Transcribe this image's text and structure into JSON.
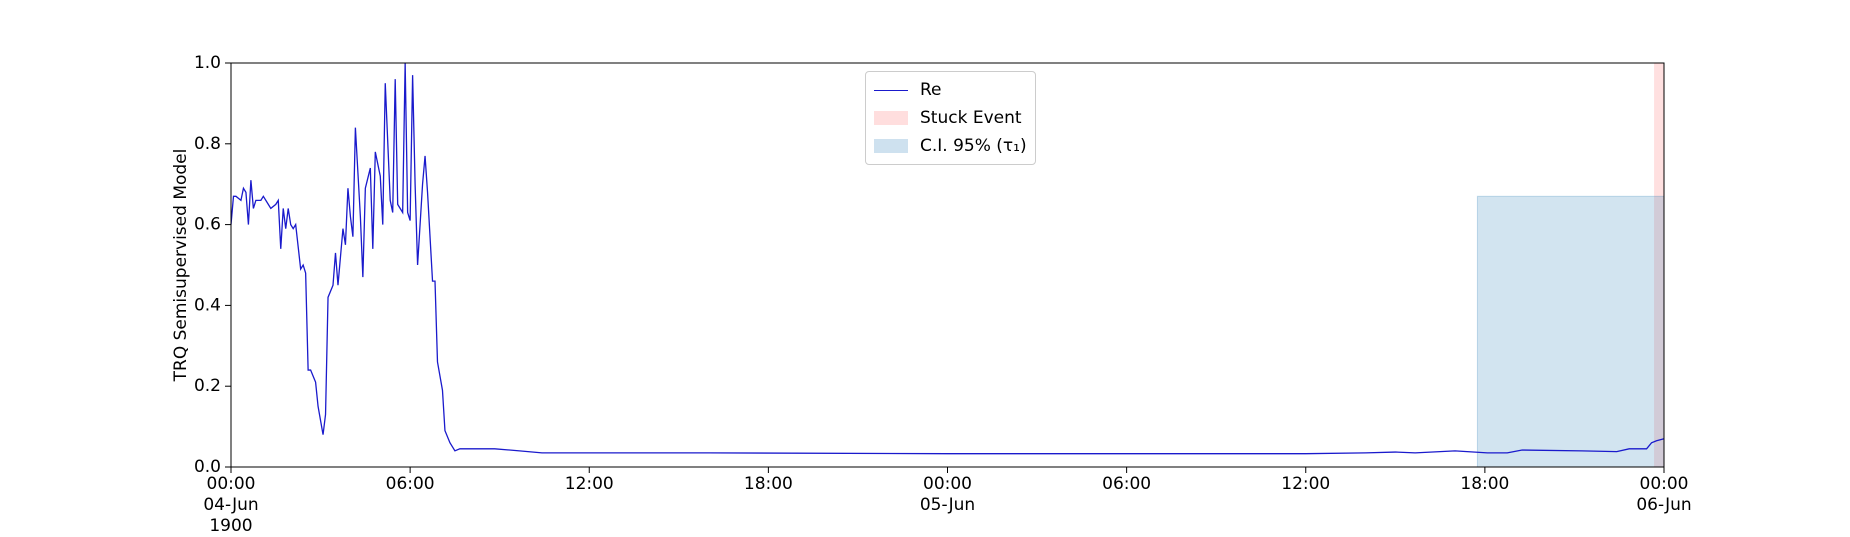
{
  "chart_data": {
    "type": "line",
    "ylabel": "TRQ Semisupervised Model",
    "x": [
      "1900-06-04 00:00",
      "1900-06-04 00:05",
      "1900-06-04 00:10",
      "1900-06-04 00:20",
      "1900-06-04 00:25",
      "1900-06-04 00:30",
      "1900-06-04 00:35",
      "1900-06-04 00:40",
      "1900-06-04 00:45",
      "1900-06-04 00:50",
      "1900-06-04 01:00",
      "1900-06-04 01:05",
      "1900-06-04 01:15",
      "1900-06-04 01:20",
      "1900-06-04 01:30",
      "1900-06-04 01:35",
      "1900-06-04 01:40",
      "1900-06-04 01:45",
      "1900-06-04 01:50",
      "1900-06-04 01:55",
      "1900-06-04 02:00",
      "1900-06-04 02:05",
      "1900-06-04 02:10",
      "1900-06-04 02:20",
      "1900-06-04 02:25",
      "1900-06-04 02:30",
      "1900-06-04 02:35",
      "1900-06-04 02:40",
      "1900-06-04 02:50",
      "1900-06-04 02:55",
      "1900-06-04 03:05",
      "1900-06-04 03:10",
      "1900-06-04 03:15",
      "1900-06-04 03:25",
      "1900-06-04 03:30",
      "1900-06-04 03:35",
      "1900-06-04 03:45",
      "1900-06-04 03:50",
      "1900-06-04 03:55",
      "1900-06-04 04:00",
      "1900-06-04 04:05",
      "1900-06-04 04:10",
      "1900-06-04 04:20",
      "1900-06-04 04:25",
      "1900-06-04 04:30",
      "1900-06-04 04:40",
      "1900-06-04 04:45",
      "1900-06-04 04:50",
      "1900-06-04 05:00",
      "1900-06-04 05:05",
      "1900-06-04 05:10",
      "1900-06-04 05:20",
      "1900-06-04 05:25",
      "1900-06-04 05:30",
      "1900-06-04 05:35",
      "1900-06-04 05:45",
      "1900-06-04 05:50",
      "1900-06-04 05:55",
      "1900-06-04 06:00",
      "1900-06-04 06:05",
      "1900-06-04 06:10",
      "1900-06-04 06:15",
      "1900-06-04 06:25",
      "1900-06-04 06:30",
      "1900-06-04 06:35",
      "1900-06-04 06:45",
      "1900-06-04 06:50",
      "1900-06-04 06:55",
      "1900-06-04 07:05",
      "1900-06-04 07:10",
      "1900-06-04 07:20",
      "1900-06-04 07:30",
      "1900-06-04 07:40",
      "1900-06-04 08:05",
      "1900-06-04 08:50",
      "1900-06-04 09:40",
      "1900-06-04 10:25",
      "1900-06-04 16:00",
      "1900-06-05 00:00",
      "1900-06-05 08:00",
      "1900-06-05 12:00",
      "1900-06-05 14:00",
      "1900-06-05 15:00",
      "1900-06-05 15:40",
      "1900-06-05 17:00",
      "1900-06-05 18:05",
      "1900-06-05 18:45",
      "1900-06-05 19:15",
      "1900-06-05 21:15",
      "1900-06-05 22:25",
      "1900-06-05 22:50",
      "1900-06-05 23:25",
      "1900-06-05 23:35",
      "1900-06-05 23:45",
      "1900-06-06 00:00"
    ],
    "series": [
      {
        "name": "Re",
        "color": "#1a1acc",
        "values": [
          0.6,
          0.67,
          0.67,
          0.66,
          0.69,
          0.68,
          0.6,
          0.71,
          0.64,
          0.66,
          0.66,
          0.67,
          0.65,
          0.64,
          0.65,
          0.66,
          0.54,
          0.64,
          0.59,
          0.64,
          0.6,
          0.59,
          0.6,
          0.49,
          0.5,
          0.48,
          0.24,
          0.24,
          0.21,
          0.15,
          0.08,
          0.13,
          0.42,
          0.45,
          0.53,
          0.45,
          0.59,
          0.55,
          0.69,
          0.62,
          0.57,
          0.84,
          0.62,
          0.47,
          0.69,
          0.74,
          0.54,
          0.78,
          0.72,
          0.6,
          0.95,
          0.66,
          0.63,
          0.96,
          0.65,
          0.63,
          1.0,
          0.63,
          0.61,
          0.97,
          0.7,
          0.5,
          0.7,
          0.77,
          0.68,
          0.46,
          0.46,
          0.26,
          0.19,
          0.09,
          0.06,
          0.04,
          0.045,
          0.045,
          0.045,
          0.04,
          0.035,
          0.035,
          0.033,
          0.033,
          0.033,
          0.035,
          0.037,
          0.035,
          0.04,
          0.035,
          0.035,
          0.042,
          0.04,
          0.038,
          0.045,
          0.045,
          0.06,
          0.065,
          0.07
        ]
      }
    ],
    "spans": [
      {
        "name": "Stuck Event",
        "color": "#ff0000",
        "x": [
          "1900-06-05 23:40",
          "1900-06-06 00:00"
        ]
      },
      {
        "name": "C.I. 95% (τ₁)",
        "color": "#1f77b4",
        "x": [
          "1900-06-05 17:45",
          "1900-06-06 00:00"
        ],
        "y": [
          0,
          0.67
        ]
      }
    ],
    "xlim": [
      "1900-06-04 00:00",
      "1900-06-06 00:00"
    ],
    "xticks": [
      {
        "value": "1900-06-04 00:00",
        "label": "00:00\n04-Jun\n1900"
      },
      {
        "value": "1900-06-04 06:00",
        "label": "06:00"
      },
      {
        "value": "1900-06-04 12:00",
        "label": "12:00"
      },
      {
        "value": "1900-06-04 18:00",
        "label": "18:00"
      },
      {
        "value": "1900-06-05 00:00",
        "label": "00:00\n05-Jun"
      },
      {
        "value": "1900-06-05 06:00",
        "label": "06:00"
      },
      {
        "value": "1900-06-05 12:00",
        "label": "12:00"
      },
      {
        "value": "1900-06-05 18:00",
        "label": "18:00"
      },
      {
        "value": "1900-06-06 00:00",
        "label": "00:00\n06-Jun"
      }
    ],
    "ylim": [
      0,
      1
    ],
    "yticks": [
      {
        "value": 0,
        "label": "0.0"
      },
      0.2,
      0.4,
      0.6,
      0.8,
      {
        "value": 1,
        "label": "1.0"
      }
    ],
    "legend": "upper center"
  }
}
